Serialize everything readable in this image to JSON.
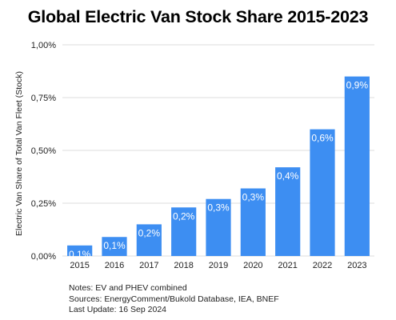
{
  "chart_data": {
    "type": "bar",
    "title": "Global Electric Van Stock Share 2015-2023",
    "xlabel": "",
    "ylabel": "Electric Van Share of Total Van Fleet (Stock)",
    "categories": [
      "2015",
      "2016",
      "2017",
      "2018",
      "2019",
      "2020",
      "2021",
      "2022",
      "2023"
    ],
    "series": [
      {
        "values": [
          0.05,
          0.09,
          0.15,
          0.23,
          0.27,
          0.32,
          0.42,
          0.6,
          0.85
        ],
        "data_labels": [
          "0,1%",
          "0,1%",
          "0,2%",
          "0,2%",
          "0,3%",
          "0,3%",
          "0,4%",
          "0,6%",
          "0,9%"
        ],
        "color": "#3d8ef2"
      }
    ],
    "ylim": [
      0,
      1.0
    ],
    "yticks": [
      0,
      0.25,
      0.5,
      0.75,
      1.0
    ],
    "ytick_labels": [
      "0,00%",
      "0,25%",
      "0,50%",
      "0,75%",
      "1,00%"
    ],
    "grid": true,
    "grid_color": "#dddddd",
    "label_color": "#ffffff"
  },
  "notes": [
    "Notes: EV and PHEV combined",
    "Sources: EnergyComment/Bukold Database, IEA, BNEF",
    "Last Update: 16 Sep 2024"
  ]
}
